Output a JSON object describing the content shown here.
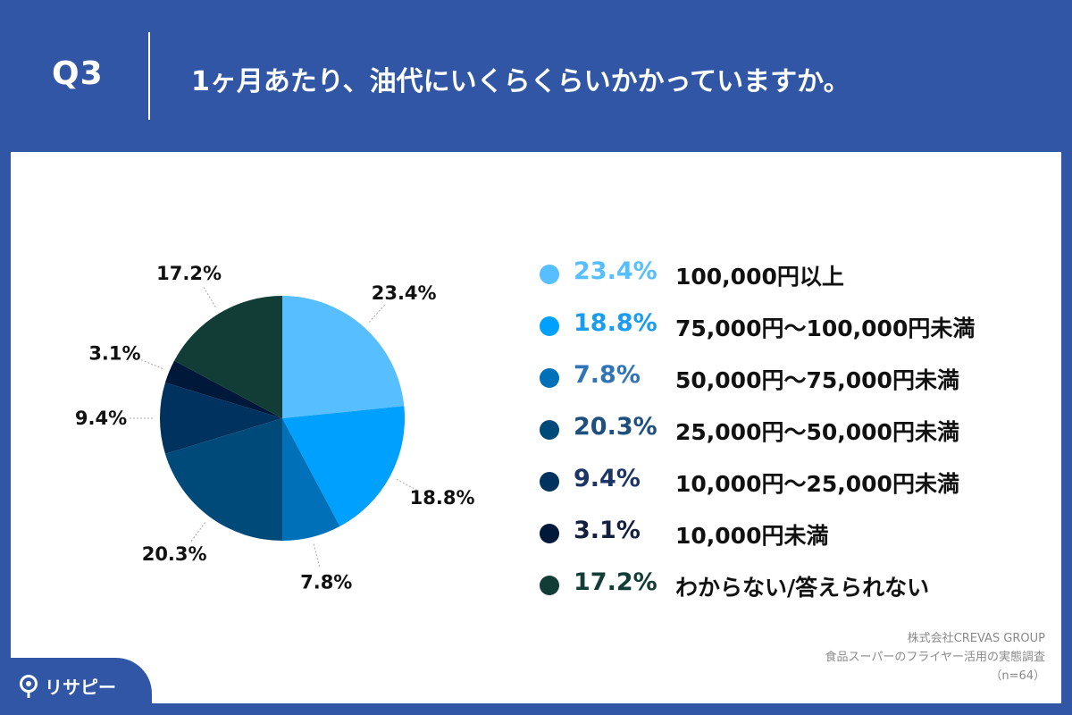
{
  "header": {
    "question_label": "Q3",
    "question_text": "1ヶ月あたり、油代にいくらくらいかかっていますか。"
  },
  "chart_data": {
    "type": "pie",
    "title": "",
    "labels": [
      "100,000円以上",
      "75,000円〜100,000円未満",
      "50,000円〜75,000円未満",
      "25,000円〜50,000円未満",
      "10,000円〜25,000円未満",
      "10,000円未満",
      "わからない/答えられない"
    ],
    "values": [
      23.4,
      18.8,
      7.8,
      20.3,
      9.4,
      3.1,
      17.2
    ],
    "value_labels": [
      "23.4%",
      "18.8%",
      "7.8%",
      "20.3%",
      "9.4%",
      "3.1%",
      "17.2%"
    ],
    "colors": [
      "#57bfff",
      "#00a0ff",
      "#0071b8",
      "#004a79",
      "#00325f",
      "#00183a",
      "#123c36"
    ],
    "legend_pct_colors": [
      "#57bfff",
      "#1a9cf0",
      "#2f73b8",
      "#1d4f7f",
      "#1c3566",
      "#14213e",
      "#133d37"
    ],
    "start_angle": "12 o'clock",
    "direction": "clockwise",
    "legend_position": "right"
  },
  "legend": [
    {
      "pct": "23.4%",
      "label": "100,000円以上"
    },
    {
      "pct": "18.8%",
      "label": "75,000円〜100,000円未満"
    },
    {
      "pct": "7.8%",
      "label": "50,000円〜75,000円未満"
    },
    {
      "pct": "20.3%",
      "label": "25,000円〜50,000円未満"
    },
    {
      "pct": "9.4%",
      "label": "10,000円〜25,000円未満"
    },
    {
      "pct": "3.1%",
      "label": "10,000円未満"
    },
    {
      "pct": "17.2%",
      "label": "わからない/答えられない"
    }
  ],
  "source": {
    "company": "株式会社CREVAS GROUP",
    "survey": "食品スーパーのフライヤー活用の実態調査",
    "sample": "（n=64）"
  },
  "logo": {
    "text": "リサピー"
  }
}
